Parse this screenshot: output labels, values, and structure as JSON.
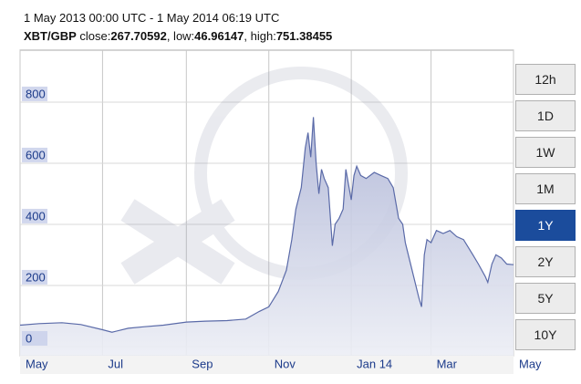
{
  "header": {
    "parts": [
      "1 May 2013 00:00 UTC - 1 May 2014 06:19 UTC"
    ],
    "quote": [
      "XBT/GBP",
      " close:",
      "267.70592",
      ", low:",
      "46.96147",
      ", high:",
      "751.38455"
    ]
  },
  "range_buttons": {
    "labels": [
      "12h",
      "1D",
      "1W",
      "1M",
      "1Y",
      "2Y",
      "5Y",
      "10Y"
    ],
    "active_index": 4
  },
  "chart_data": {
    "type": "area",
    "x": [
      "2013-05-01",
      "2013-05-15",
      "2013-06-01",
      "2013-06-15",
      "2013-07-01",
      "2013-07-08",
      "2013-07-20",
      "2013-08-01",
      "2013-08-15",
      "2013-09-01",
      "2013-09-15",
      "2013-10-01",
      "2013-10-15",
      "2013-10-25",
      "2013-11-01",
      "2013-11-08",
      "2013-11-14",
      "2013-11-18",
      "2013-11-21",
      "2013-11-25",
      "2013-11-28",
      "2013-11-30",
      "2013-12-02",
      "2013-12-04",
      "2013-12-06",
      "2013-12-08",
      "2013-12-10",
      "2013-12-12",
      "2013-12-15",
      "2013-12-18",
      "2013-12-20",
      "2013-12-23",
      "2013-12-26",
      "2013-12-28",
      "2014-01-01",
      "2014-01-03",
      "2014-01-05",
      "2014-01-08",
      "2014-01-12",
      "2014-01-18",
      "2014-01-23",
      "2014-01-28",
      "2014-02-01",
      "2014-02-05",
      "2014-02-08",
      "2014-02-10",
      "2014-02-15",
      "2014-02-20",
      "2014-02-22",
      "2014-02-24",
      "2014-02-26",
      "2014-03-01",
      "2014-03-05",
      "2014-03-10",
      "2014-03-15",
      "2014-03-20",
      "2014-03-25",
      "2014-04-01",
      "2014-04-05",
      "2014-04-10",
      "2014-04-12",
      "2014-04-15",
      "2014-04-18",
      "2014-04-22",
      "2014-04-26",
      "2014-05-01"
    ],
    "series": [
      {
        "name": "XBT/GBP",
        "color": "#5a6aa8",
        "values": [
          70,
          75,
          78,
          72,
          55,
          47,
          60,
          65,
          70,
          80,
          83,
          85,
          90,
          115,
          130,
          180,
          250,
          350,
          450,
          520,
          650,
          700,
          620,
          751,
          600,
          500,
          580,
          550,
          520,
          330,
          400,
          420,
          450,
          580,
          480,
          560,
          590,
          560,
          550,
          570,
          560,
          550,
          520,
          420,
          400,
          340,
          250,
          160,
          130,
          300,
          350,
          340,
          380,
          370,
          380,
          360,
          350,
          300,
          270,
          230,
          210,
          270,
          300,
          290,
          270,
          268
        ]
      }
    ],
    "xlim": [
      "2013-05-01",
      "2014-05-01"
    ],
    "xticks": [
      {
        "value": "2013-05-01",
        "label": "May"
      },
      {
        "value": "2013-07-01",
        "label": "Jul"
      },
      {
        "value": "2013-09-01",
        "label": "Sep"
      },
      {
        "value": "2013-11-01",
        "label": "Nov"
      },
      {
        "value": "2014-01-01",
        "label": "Jan 14"
      },
      {
        "value": "2014-03-01",
        "label": "Mar"
      },
      {
        "value": "2014-05-01",
        "label": "May"
      }
    ],
    "ylim": [
      -30,
      970
    ],
    "yticks": [
      0,
      200,
      400,
      600,
      800
    ],
    "grid": true
  }
}
